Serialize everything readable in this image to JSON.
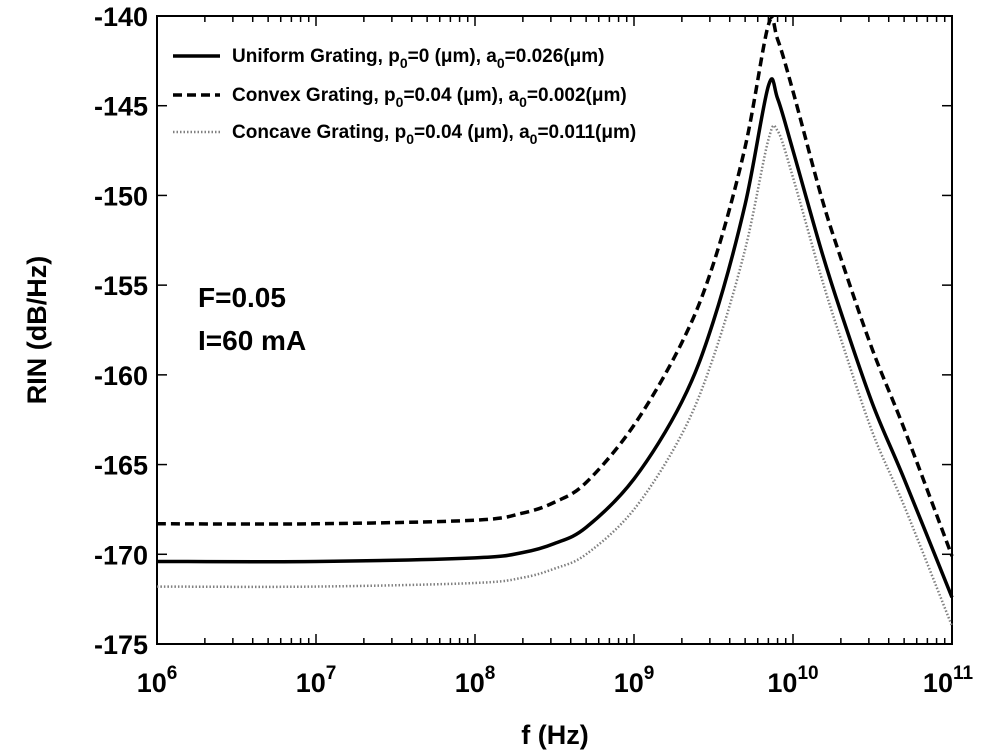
{
  "chart_data": {
    "type": "line",
    "xlabel": "f (Hz)",
    "ylabel": "RIN (dB/Hz)",
    "xscale": "log",
    "xlim": [
      1000000,
      100000000000
    ],
    "ylim": [
      -175,
      -140
    ],
    "x_ticks": [
      {
        "base": "10",
        "exp": "6"
      },
      {
        "base": "10",
        "exp": "7"
      },
      {
        "base": "10",
        "exp": "8"
      },
      {
        "base": "10",
        "exp": "9"
      },
      {
        "base": "10",
        "exp": "10"
      },
      {
        "base": "10",
        "exp": "11"
      }
    ],
    "y_ticks": [
      "-140",
      "-145",
      "-150",
      "-155",
      "-160",
      "-165",
      "-170",
      "-175"
    ],
    "y_tick_values": [
      -140,
      -145,
      -150,
      -155,
      -160,
      -165,
      -170,
      -175
    ],
    "grid": false,
    "legend_position": "top-left",
    "annotations": [
      "F=0.05",
      "I=60 mA"
    ],
    "series": [
      {
        "name": "Uniform Grating, p0=0 (μm), a0=0.026(μm)",
        "legend_parts": [
          "Uniform Grating, p",
          "0",
          "=0 (μm), a",
          "0",
          "=0.026(μm)"
        ],
        "style": "solid",
        "color": "#000000",
        "x": [
          1000000,
          10000000,
          100000000,
          200000000,
          316000000,
          500000000,
          1000000000,
          2000000000,
          3160000000,
          5000000000,
          7000000000,
          8000000000,
          10000000000,
          15000000000,
          20000000000,
          31600000000,
          50000000000,
          100000000000
        ],
        "y": [
          -170.4,
          -170.4,
          -170.2,
          -169.9,
          -169.4,
          -168.5,
          -165.8,
          -161.5,
          -157.0,
          -150.5,
          -143.9,
          -144.6,
          -147.5,
          -153.0,
          -156.5,
          -161.6,
          -165.8,
          -172.4
        ]
      },
      {
        "name": "Convex Grating, p0=0.04 (μm), a0=0.002(μm)",
        "legend_parts": [
          "Convex Grating, p",
          "0",
          "=0.04 (μm), a",
          "0",
          "=0.002(μm)"
        ],
        "style": "dashed",
        "color": "#000000",
        "x": [
          1000000,
          10000000,
          100000000,
          200000000,
          316000000,
          500000000,
          1000000000,
          2000000000,
          3160000000,
          5000000000,
          7000000000,
          8000000000,
          10000000000,
          15000000000,
          20000000000,
          31600000000,
          50000000000,
          100000000000
        ],
        "y": [
          -168.3,
          -168.3,
          -168.1,
          -167.7,
          -167.1,
          -166.0,
          -162.8,
          -158.2,
          -153.8,
          -147.3,
          -140.5,
          -141.3,
          -144.2,
          -150.0,
          -153.5,
          -158.6,
          -163.0,
          -170.1
        ]
      },
      {
        "name": "Concave Grating, p0=0.04 (μm), a0=0.011(μm)",
        "legend_parts": [
          "Concave Grating, p",
          "0",
          "=0.04 (μm), a",
          "0",
          "=0.011(μm)"
        ],
        "style": "dotted",
        "color": "#808080",
        "x": [
          1000000,
          10000000,
          100000000,
          200000000,
          316000000,
          500000000,
          1000000000,
          2000000000,
          3160000000,
          5000000000,
          7000000000,
          8000000000,
          10000000000,
          15000000000,
          20000000000,
          31600000000,
          50000000000,
          100000000000
        ],
        "y": [
          -171.8,
          -171.8,
          -171.6,
          -171.3,
          -170.8,
          -170.0,
          -167.5,
          -163.3,
          -159.0,
          -153.0,
          -146.9,
          -146.4,
          -149.0,
          -154.5,
          -158.0,
          -163.2,
          -167.3,
          -174.0
        ]
      }
    ]
  }
}
